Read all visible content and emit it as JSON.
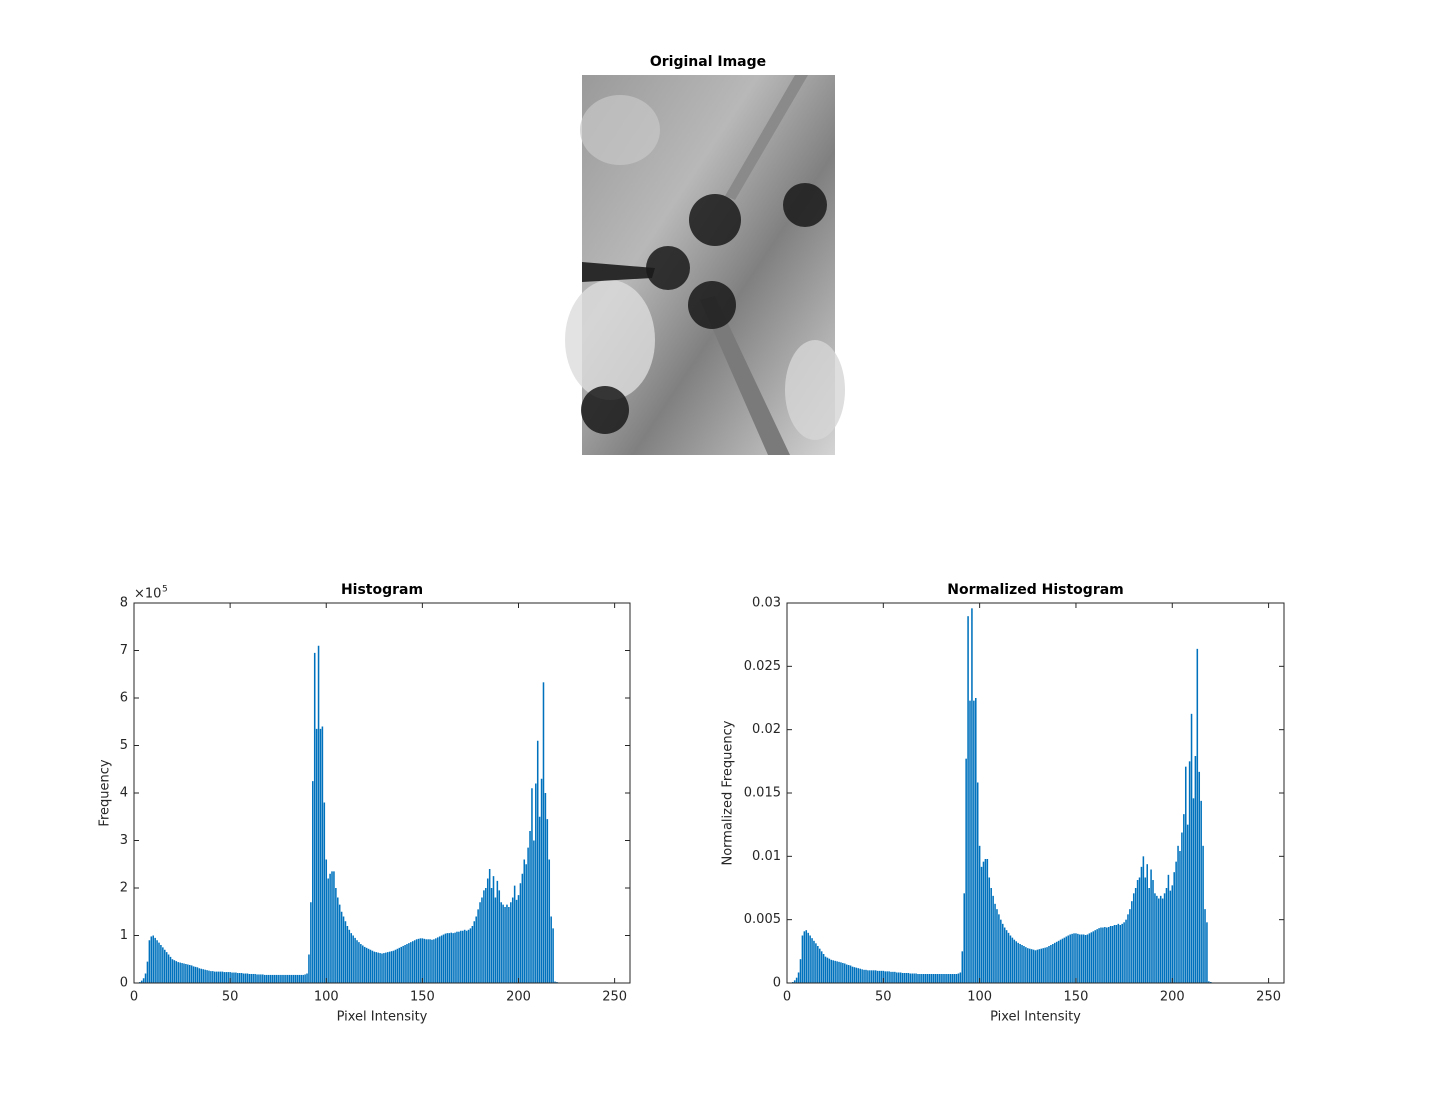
{
  "image": {
    "title": "Original Image"
  },
  "chart_data": [
    {
      "type": "bar",
      "title": "Histogram",
      "x_label": "Pixel Intensity",
      "y_label": "Frequency",
      "y_exponent_base": "×10",
      "y_exponent": "5",
      "color": "#0072bd",
      "xlim": [
        0,
        258
      ],
      "xticks": [
        0,
        50,
        100,
        150,
        200,
        250
      ],
      "ylim": [
        0,
        8
      ],
      "yticks": [
        0,
        1,
        2,
        3,
        4,
        5,
        6,
        7,
        8
      ],
      "x": [
        0,
        1,
        2,
        3,
        4,
        5,
        6,
        7,
        8,
        9,
        10,
        11,
        12,
        13,
        14,
        15,
        16,
        17,
        18,
        19,
        20,
        21,
        22,
        23,
        24,
        25,
        26,
        27,
        28,
        29,
        30,
        31,
        32,
        33,
        34,
        35,
        36,
        37,
        38,
        39,
        40,
        41,
        42,
        43,
        44,
        45,
        46,
        47,
        48,
        49,
        50,
        51,
        52,
        53,
        54,
        55,
        56,
        57,
        58,
        59,
        60,
        61,
        62,
        63,
        64,
        65,
        66,
        67,
        68,
        69,
        70,
        71,
        72,
        73,
        74,
        75,
        76,
        77,
        78,
        79,
        80,
        81,
        82,
        83,
        84,
        85,
        86,
        87,
        88,
        89,
        90,
        91,
        92,
        93,
        94,
        95,
        96,
        97,
        98,
        99,
        100,
        101,
        102,
        103,
        104,
        105,
        106,
        107,
        108,
        109,
        110,
        111,
        112,
        113,
        114,
        115,
        116,
        117,
        118,
        119,
        120,
        121,
        122,
        123,
        124,
        125,
        126,
        127,
        128,
        129,
        130,
        131,
        132,
        133,
        134,
        135,
        136,
        137,
        138,
        139,
        140,
        141,
        142,
        143,
        144,
        145,
        146,
        147,
        148,
        149,
        150,
        151,
        152,
        153,
        154,
        155,
        156,
        157,
        158,
        159,
        160,
        161,
        162,
        163,
        164,
        165,
        166,
        167,
        168,
        169,
        170,
        171,
        172,
        173,
        174,
        175,
        176,
        177,
        178,
        179,
        180,
        181,
        182,
        183,
        184,
        185,
        186,
        187,
        188,
        189,
        190,
        191,
        192,
        193,
        194,
        195,
        196,
        197,
        198,
        199,
        200,
        201,
        202,
        203,
        204,
        205,
        206,
        207,
        208,
        209,
        210,
        211,
        212,
        213,
        214,
        215,
        216,
        217,
        218,
        219,
        220,
        221,
        222,
        223,
        224,
        225,
        226,
        227,
        228,
        229,
        230,
        231,
        232,
        233,
        234,
        235,
        236,
        237,
        238,
        239,
        240,
        241,
        242,
        243,
        244,
        245,
        246,
        247,
        248,
        249,
        250,
        251,
        252,
        253,
        254,
        255
      ],
      "values": [
        0,
        0,
        0.01,
        0.02,
        0.05,
        0.1,
        0.2,
        0.45,
        0.9,
        0.98,
        1.0,
        0.95,
        0.9,
        0.85,
        0.8,
        0.75,
        0.7,
        0.65,
        0.6,
        0.55,
        0.5,
        0.48,
        0.46,
        0.44,
        0.43,
        0.42,
        0.41,
        0.4,
        0.39,
        0.38,
        0.37,
        0.35,
        0.34,
        0.33,
        0.31,
        0.3,
        0.29,
        0.28,
        0.27,
        0.26,
        0.25,
        0.25,
        0.24,
        0.24,
        0.24,
        0.24,
        0.24,
        0.23,
        0.23,
        0.23,
        0.23,
        0.22,
        0.22,
        0.22,
        0.21,
        0.21,
        0.21,
        0.2,
        0.2,
        0.2,
        0.19,
        0.19,
        0.19,
        0.19,
        0.18,
        0.18,
        0.18,
        0.18,
        0.17,
        0.17,
        0.17,
        0.17,
        0.17,
        0.17,
        0.17,
        0.17,
        0.17,
        0.17,
        0.17,
        0.17,
        0.17,
        0.17,
        0.17,
        0.17,
        0.17,
        0.17,
        0.17,
        0.17,
        0.17,
        0.18,
        0.2,
        0.6,
        1.7,
        4.25,
        6.95,
        5.35,
        7.1,
        5.35,
        5.4,
        3.8,
        2.6,
        2.2,
        2.3,
        2.35,
        2.35,
        2.0,
        1.8,
        1.65,
        1.5,
        1.4,
        1.3,
        1.2,
        1.12,
        1.05,
        1.0,
        0.95,
        0.9,
        0.86,
        0.82,
        0.79,
        0.76,
        0.74,
        0.72,
        0.7,
        0.68,
        0.66,
        0.65,
        0.64,
        0.63,
        0.62,
        0.63,
        0.64,
        0.65,
        0.66,
        0.67,
        0.68,
        0.7,
        0.72,
        0.74,
        0.76,
        0.78,
        0.8,
        0.82,
        0.84,
        0.86,
        0.88,
        0.9,
        0.92,
        0.93,
        0.94,
        0.94,
        0.93,
        0.92,
        0.92,
        0.92,
        0.91,
        0.92,
        0.94,
        0.96,
        0.98,
        1.0,
        1.02,
        1.04,
        1.05,
        1.05,
        1.06,
        1.05,
        1.06,
        1.08,
        1.08,
        1.1,
        1.1,
        1.12,
        1.1,
        1.12,
        1.15,
        1.2,
        1.3,
        1.4,
        1.55,
        1.7,
        1.8,
        1.95,
        2.0,
        2.2,
        2.4,
        2.0,
        2.25,
        1.8,
        2.15,
        1.95,
        1.7,
        1.65,
        1.6,
        1.65,
        1.6,
        1.7,
        1.8,
        2.05,
        1.75,
        1.85,
        2.1,
        2.3,
        2.6,
        2.5,
        2.85,
        3.2,
        4.1,
        3.0,
        4.2,
        5.1,
        3.5,
        4.3,
        6.33,
        4.0,
        3.45,
        2.6,
        1.4,
        1.15,
        0.03,
        0.02,
        0.01,
        0,
        0,
        0,
        0,
        0,
        0,
        0,
        0,
        0,
        0,
        0,
        0,
        0,
        0,
        0,
        0,
        0,
        0,
        0,
        0,
        0,
        0,
        0,
        0,
        0,
        0,
        0,
        0,
        0,
        0,
        0,
        0,
        0,
        0
      ]
    },
    {
      "type": "bar",
      "title": "Normalized Histogram",
      "x_label": "Pixel Intensity",
      "y_label": "Normalized Frequency",
      "color": "#0072bd",
      "xlim": [
        0,
        258
      ],
      "xticks": [
        0,
        50,
        100,
        150,
        200,
        250
      ],
      "ylim": [
        0,
        0.03
      ],
      "yticks": [
        0,
        0.005,
        0.01,
        0.015,
        0.02,
        0.025,
        0.03
      ],
      "x": [
        0,
        1,
        2,
        3,
        4,
        5,
        6,
        7,
        8,
        9,
        10,
        11,
        12,
        13,
        14,
        15,
        16,
        17,
        18,
        19,
        20,
        21,
        22,
        23,
        24,
        25,
        26,
        27,
        28,
        29,
        30,
        31,
        32,
        33,
        34,
        35,
        36,
        37,
        38,
        39,
        40,
        41,
        42,
        43,
        44,
        45,
        46,
        47,
        48,
        49,
        50,
        51,
        52,
        53,
        54,
        55,
        56,
        57,
        58,
        59,
        60,
        61,
        62,
        63,
        64,
        65,
        66,
        67,
        68,
        69,
        70,
        71,
        72,
        73,
        74,
        75,
        76,
        77,
        78,
        79,
        80,
        81,
        82,
        83,
        84,
        85,
        86,
        87,
        88,
        89,
        90,
        91,
        92,
        93,
        94,
        95,
        96,
        97,
        98,
        99,
        100,
        101,
        102,
        103,
        104,
        105,
        106,
        107,
        108,
        109,
        110,
        111,
        112,
        113,
        114,
        115,
        116,
        117,
        118,
        119,
        120,
        121,
        122,
        123,
        124,
        125,
        126,
        127,
        128,
        129,
        130,
        131,
        132,
        133,
        134,
        135,
        136,
        137,
        138,
        139,
        140,
        141,
        142,
        143,
        144,
        145,
        146,
        147,
        148,
        149,
        150,
        151,
        152,
        153,
        154,
        155,
        156,
        157,
        158,
        159,
        160,
        161,
        162,
        163,
        164,
        165,
        166,
        167,
        168,
        169,
        170,
        171,
        172,
        173,
        174,
        175,
        176,
        177,
        178,
        179,
        180,
        181,
        182,
        183,
        184,
        185,
        186,
        187,
        188,
        189,
        190,
        191,
        192,
        193,
        194,
        195,
        196,
        197,
        198,
        199,
        200,
        201,
        202,
        203,
        204,
        205,
        206,
        207,
        208,
        209,
        210,
        211,
        212,
        213,
        214,
        215,
        216,
        217,
        218,
        219,
        220,
        221,
        222,
        223,
        224,
        225,
        226,
        227,
        228,
        229,
        230,
        231,
        232,
        233,
        234,
        235,
        236,
        237,
        238,
        239,
        240,
        241,
        242,
        243,
        244,
        245,
        246,
        247,
        248,
        249,
        250,
        251,
        252,
        253,
        254,
        255
      ],
      "values": [
        0,
        0,
        4e-05,
        8e-05,
        0.00021,
        0.00042,
        0.00083,
        0.00188,
        0.00375,
        0.00408,
        0.00417,
        0.00396,
        0.00375,
        0.00354,
        0.00333,
        0.00313,
        0.00292,
        0.00271,
        0.0025,
        0.00229,
        0.00208,
        0.002,
        0.00192,
        0.00183,
        0.00179,
        0.00175,
        0.00171,
        0.00167,
        0.00163,
        0.00158,
        0.00154,
        0.00146,
        0.00142,
        0.00138,
        0.00129,
        0.00125,
        0.00121,
        0.00117,
        0.00113,
        0.00108,
        0.00104,
        0.00104,
        0.001,
        0.001,
        0.001,
        0.001,
        0.001,
        0.00096,
        0.00096,
        0.00096,
        0.00096,
        0.00092,
        0.00092,
        0.00092,
        0.00088,
        0.00088,
        0.00088,
        0.00083,
        0.00083,
        0.00083,
        0.00079,
        0.00079,
        0.00079,
        0.00079,
        0.00075,
        0.00075,
        0.00075,
        0.00075,
        0.00071,
        0.00071,
        0.00071,
        0.00071,
        0.00071,
        0.00071,
        0.00071,
        0.00071,
        0.00071,
        0.00071,
        0.00071,
        0.00071,
        0.00071,
        0.00071,
        0.00071,
        0.00071,
        0.00071,
        0.00071,
        0.00071,
        0.00071,
        0.00071,
        0.00075,
        0.00083,
        0.0025,
        0.00708,
        0.01771,
        0.02896,
        0.02229,
        0.02958,
        0.02229,
        0.0225,
        0.01583,
        0.01083,
        0.00917,
        0.00958,
        0.00979,
        0.00979,
        0.00833,
        0.0075,
        0.00688,
        0.00625,
        0.00583,
        0.00542,
        0.005,
        0.00467,
        0.00438,
        0.00417,
        0.00396,
        0.00375,
        0.00358,
        0.00342,
        0.00329,
        0.00317,
        0.00308,
        0.003,
        0.00292,
        0.00283,
        0.00275,
        0.00271,
        0.00267,
        0.00263,
        0.00258,
        0.00263,
        0.00267,
        0.00271,
        0.00275,
        0.00279,
        0.00283,
        0.00292,
        0.003,
        0.00308,
        0.00317,
        0.00325,
        0.00333,
        0.00342,
        0.0035,
        0.00358,
        0.00367,
        0.00375,
        0.00383,
        0.00388,
        0.00392,
        0.00392,
        0.00388,
        0.00383,
        0.00383,
        0.00383,
        0.00379,
        0.00383,
        0.00392,
        0.004,
        0.00408,
        0.00417,
        0.00425,
        0.00433,
        0.00438,
        0.00438,
        0.00442,
        0.00438,
        0.00442,
        0.0045,
        0.0045,
        0.00458,
        0.00458,
        0.00467,
        0.00458,
        0.00467,
        0.00479,
        0.005,
        0.00542,
        0.00583,
        0.00646,
        0.00708,
        0.0075,
        0.00813,
        0.00833,
        0.00917,
        0.01,
        0.00833,
        0.00938,
        0.0075,
        0.00896,
        0.00813,
        0.00708,
        0.00688,
        0.00667,
        0.00688,
        0.00667,
        0.00708,
        0.0075,
        0.00854,
        0.00729,
        0.00771,
        0.00875,
        0.00958,
        0.01083,
        0.01042,
        0.01188,
        0.01333,
        0.01708,
        0.0125,
        0.0175,
        0.02125,
        0.01458,
        0.01792,
        0.02638,
        0.01667,
        0.01438,
        0.01083,
        0.00583,
        0.00479,
        0.00013,
        8e-05,
        4e-05,
        0,
        0,
        0,
        0,
        0,
        0,
        0,
        0,
        0,
        0,
        0,
        0,
        0,
        0,
        0,
        0,
        0,
        0,
        0,
        0,
        0,
        0,
        0,
        0,
        0,
        0,
        0,
        0,
        0,
        0,
        0,
        0,
        0,
        0
      ]
    }
  ]
}
